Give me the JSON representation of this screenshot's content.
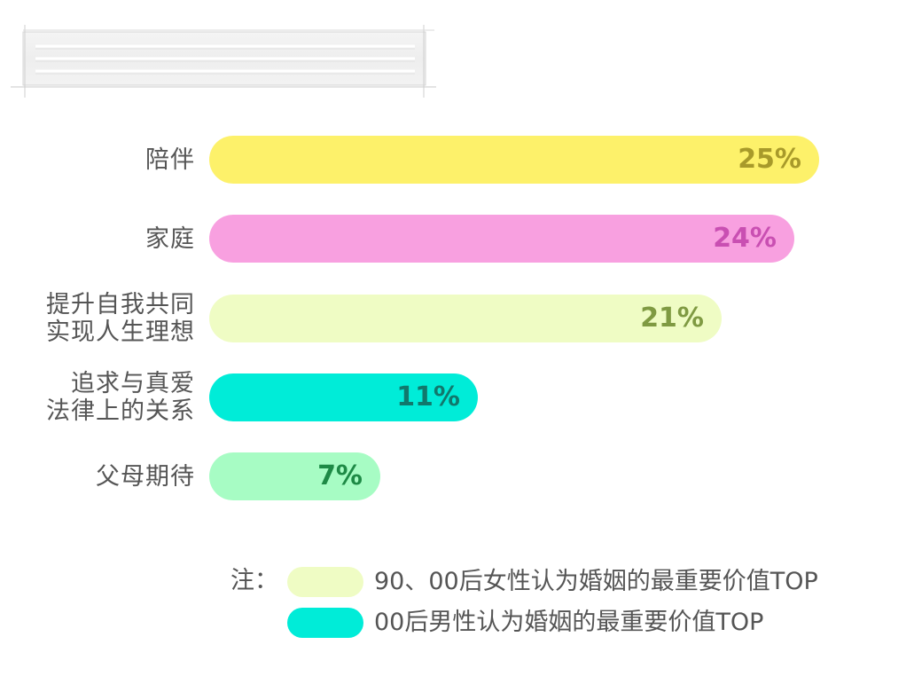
{
  "chart_data": {
    "type": "bar",
    "orientation": "horizontal",
    "title": "",
    "xlabel": "",
    "ylabel": "",
    "xlim": [
      0,
      25
    ],
    "grid": false,
    "categories": [
      "陪伴",
      "家庭",
      "提升自我共同\n实现人生理想",
      "追求与真爱\n法律上的关系",
      "父母期待"
    ],
    "values": [
      25,
      24,
      21,
      11,
      7
    ],
    "value_labels": [
      "25%",
      "24%",
      "21%",
      "11%",
      "7%"
    ],
    "bar_colors": [
      "#fdf16a",
      "#f8a0e0",
      "#effcc4",
      "#00ecd8",
      "#a7fcc4"
    ],
    "label_colors": [
      "#a89a2a",
      "#c94fb2",
      "#7f9a42",
      "#11786c",
      "#1e8a46"
    ],
    "legend": {
      "prefix": "注：",
      "placement": "bottom",
      "entries": [
        {
          "label": "90、00后女性认为婚姻的最重要价值TOP",
          "color": "#effcc4"
        },
        {
          "label": "00后男性认为婚姻的最重要价值TOP",
          "color": "#00ecd8"
        }
      ]
    }
  }
}
